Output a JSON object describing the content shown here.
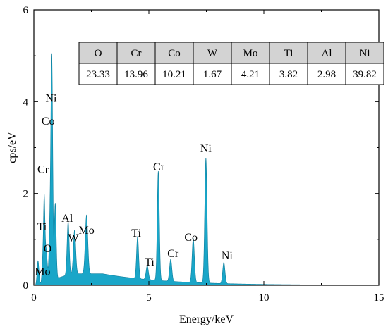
{
  "chart_data": {
    "type": "area",
    "xlabel": "Energy/keV",
    "ylabel": "cps/eV",
    "xlim": [
      0,
      15
    ],
    "ylim": [
      0,
      6
    ],
    "xticks": [
      "0",
      "5",
      "10",
      "15"
    ],
    "yticks": [
      "0",
      "2",
      "4",
      "6"
    ],
    "grid": false,
    "colors": {
      "spectrum": "#1aa6c8",
      "spectrum_edge": "#0f7f9d",
      "table_header": "#d3d3d3"
    },
    "background": 0.25,
    "peaks": [
      {
        "x": 0.18,
        "y": 0.52,
        "width": 0.04
      },
      {
        "x": 0.39,
        "y": 0.5,
        "width": 0.035
      },
      {
        "x": 0.45,
        "y": 1.62,
        "width": 0.03
      },
      {
        "x": 0.53,
        "y": 0.72,
        "width": 0.05
      },
      {
        "x": 0.7,
        "y": 1.1,
        "width": 0.04
      },
      {
        "x": 0.78,
        "y": 4.78,
        "width": 0.04
      },
      {
        "x": 0.93,
        "y": 1.65,
        "width": 0.04
      },
      {
        "x": 1.49,
        "y": 1.16,
        "width": 0.045
      },
      {
        "x": 1.77,
        "y": 0.95,
        "width": 0.05
      },
      {
        "x": 2.29,
        "y": 1.28,
        "width": 0.055
      },
      {
        "x": 4.51,
        "y": 0.92,
        "width": 0.045
      },
      {
        "x": 4.93,
        "y": 0.3,
        "width": 0.05
      },
      {
        "x": 5.41,
        "y": 2.38,
        "width": 0.045
      },
      {
        "x": 5.95,
        "y": 0.48,
        "width": 0.05
      },
      {
        "x": 6.93,
        "y": 0.96,
        "width": 0.05
      },
      {
        "x": 7.48,
        "y": 2.72,
        "width": 0.05
      },
      {
        "x": 8.26,
        "y": 0.46,
        "width": 0.05
      }
    ],
    "annotations": [
      {
        "text": "Ni",
        "x": 0.75,
        "y": 4.0
      },
      {
        "text": "Co",
        "x": 0.62,
        "y": 3.5
      },
      {
        "text": "Cr",
        "x": 0.4,
        "y": 2.45
      },
      {
        "text": "Ti",
        "x": 0.35,
        "y": 1.2
      },
      {
        "text": "Al",
        "x": 1.45,
        "y": 1.38
      },
      {
        "text": "Mo",
        "x": 2.29,
        "y": 1.12
      },
      {
        "text": "O",
        "x": 0.6,
        "y": 0.72
      },
      {
        "text": "W",
        "x": 1.72,
        "y": 0.95
      },
      {
        "text": "Mo",
        "x": 0.38,
        "y": 0.22
      },
      {
        "text": "Ti",
        "x": 4.45,
        "y": 1.06
      },
      {
        "text": "Ti",
        "x": 5.03,
        "y": 0.43
      },
      {
        "text": "Cr",
        "x": 5.43,
        "y": 2.5
      },
      {
        "text": "Cr",
        "x": 6.05,
        "y": 0.61
      },
      {
        "text": "Co",
        "x": 6.83,
        "y": 0.97
      },
      {
        "text": "Ni",
        "x": 7.48,
        "y": 2.9
      },
      {
        "text": "Ni",
        "x": 8.4,
        "y": 0.57
      }
    ],
    "table": {
      "headers": [
        "O",
        "Cr",
        "Co",
        "W",
        "Mo",
        "Ti",
        "Al",
        "Ni"
      ],
      "values": [
        "23.33",
        "13.96",
        "10.21",
        "1.67",
        "4.21",
        "3.82",
        "2.98",
        "39.82"
      ]
    }
  }
}
